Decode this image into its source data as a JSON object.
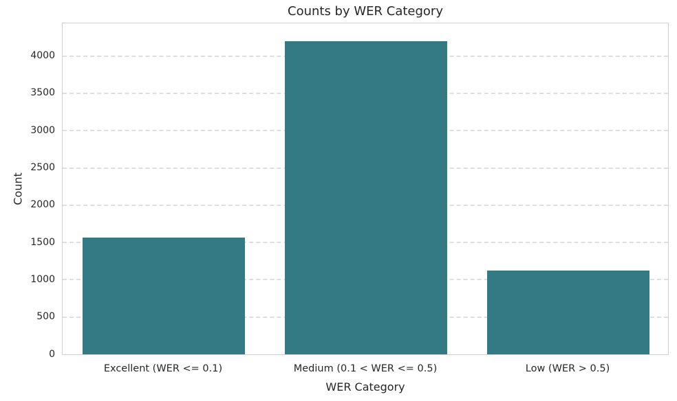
{
  "chart_data": {
    "type": "bar",
    "title": "Counts by WER Category",
    "xlabel": "WER Category",
    "ylabel": "Count",
    "categories": [
      "Excellent (WER <= 0.1)",
      "Medium (0.1 < WER <= 0.5)",
      "Low (WER > 0.5)"
    ],
    "values": [
      1570,
      4200,
      1120
    ],
    "ytick_labels": [
      "0",
      "500",
      "1000",
      "1500",
      "2000",
      "2500",
      "3000",
      "3500",
      "4000"
    ],
    "yticks": [
      0,
      500,
      1000,
      1500,
      2000,
      2500,
      3000,
      3500,
      4000
    ],
    "ylim": [
      0,
      4430
    ],
    "grid": "horizontal-dashed",
    "legend": "none",
    "bar_color": "#337a85",
    "grid_color": "#dedede",
    "spine_color": "#cfcfcf",
    "text_color": "#262626",
    "background_color": "#ffffff"
  }
}
